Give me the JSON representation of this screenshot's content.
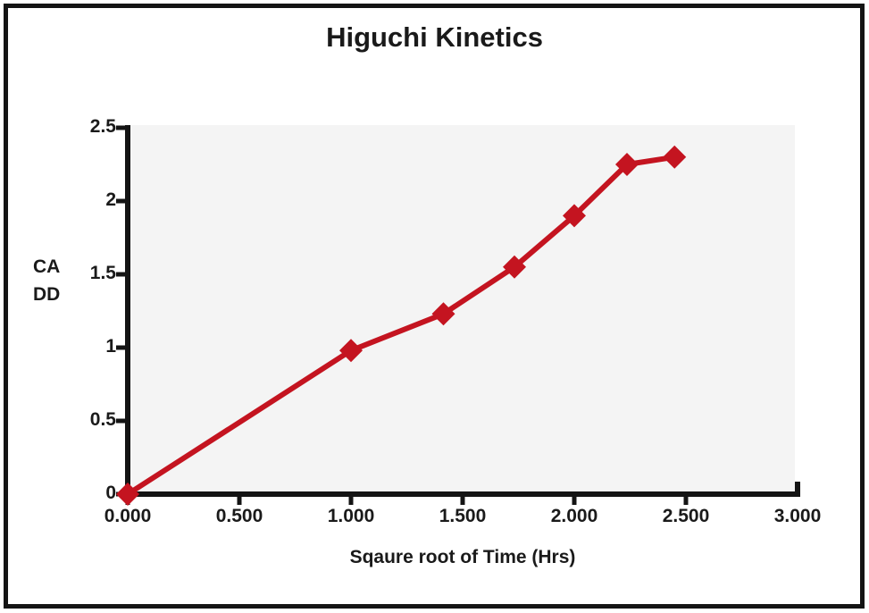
{
  "figure": {
    "frame_color": "#141414",
    "background": "#ffffff"
  },
  "chart_data": {
    "type": "line",
    "title": "Higuchi Kinetics",
    "xlabel": "Sqaure root of Time (Hrs)",
    "ylabel_lines": [
      "CA",
      "DD"
    ],
    "x": [
      0,
      1,
      1.414,
      1.732,
      2,
      2.236,
      2.449
    ],
    "y": [
      0,
      0.98,
      1.23,
      1.55,
      1.9,
      2.25,
      2.3
    ],
    "xlim": [
      0,
      3
    ],
    "ylim": [
      0,
      2.5
    ],
    "x_ticks": [
      0,
      0.5,
      1,
      1.5,
      2,
      2.5,
      3
    ],
    "x_tick_labels": [
      "0.000",
      "0.500",
      "1.000",
      "1.500",
      "2.000",
      "2.500",
      "3.000"
    ],
    "y_ticks": [
      0,
      0.5,
      1,
      1.5,
      2,
      2.5
    ],
    "y_tick_labels": [
      "0",
      "0.5",
      "1",
      "1.5",
      "2",
      "2.5"
    ],
    "line_color": "#c41420",
    "axis_color": "#141414",
    "plot_bg": "#f4f4f4",
    "marker": "diamond",
    "grid": false,
    "legend": "none"
  }
}
